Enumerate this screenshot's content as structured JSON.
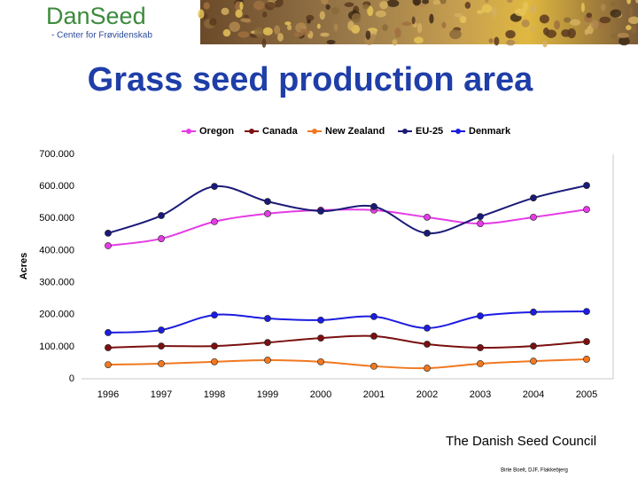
{
  "header": {
    "logo": "DanSeed",
    "logo_subtitle": "- Center for Frøvidenskab"
  },
  "chart_data": {
    "type": "line",
    "title": "Grass seed production area",
    "y_label": "Acres",
    "categories": [
      "1996",
      "1997",
      "1998",
      "1999",
      "2000",
      "2001",
      "2002",
      "2003",
      "2004",
      "2005"
    ],
    "series": [
      {
        "name": "Oregon",
        "color": "#e43ce4",
        "values": [
          415000,
          437000,
          490000,
          515000,
          526000,
          526000,
          504000,
          484000,
          504000,
          528000
        ]
      },
      {
        "name": "Canada",
        "color": "#7a1010",
        "values": [
          97000,
          102000,
          102000,
          113000,
          127000,
          133000,
          108000,
          97000,
          102000,
          116000
        ]
      },
      {
        "name": "New Zealand",
        "color": "#f07820",
        "values": [
          44000,
          47000,
          53000,
          58000,
          53000,
          39000,
          33000,
          47000,
          55000,
          61000
        ]
      },
      {
        "name": "EU-25",
        "color": "#1a1a78",
        "values": [
          454000,
          509000,
          600000,
          553000,
          523000,
          537000,
          454000,
          506000,
          564000,
          603000
        ]
      },
      {
        "name": "Denmark",
        "color": "#1c1ce0",
        "values": [
          144000,
          152000,
          199000,
          188000,
          183000,
          194000,
          158000,
          196000,
          208000,
          210000
        ]
      }
    ],
    "ylim": [
      0,
      700000
    ],
    "yticks": [
      0,
      {
        "value": 100000,
        "label": "100.000"
      },
      {
        "value": 200000,
        "label": "200.000"
      },
      {
        "value": 300000,
        "label": "300.000"
      },
      {
        "value": 400000,
        "label": "400.000"
      },
      {
        "value": 500000,
        "label": "500.000"
      },
      {
        "value": 600000,
        "label": "600.000"
      },
      {
        "value": 700000,
        "label": "700.000"
      }
    ],
    "legend": "top"
  },
  "footer": {
    "organization": "The Danish Seed Council",
    "credit": "Birte Boelt, DJF, Flakkebjerg"
  }
}
